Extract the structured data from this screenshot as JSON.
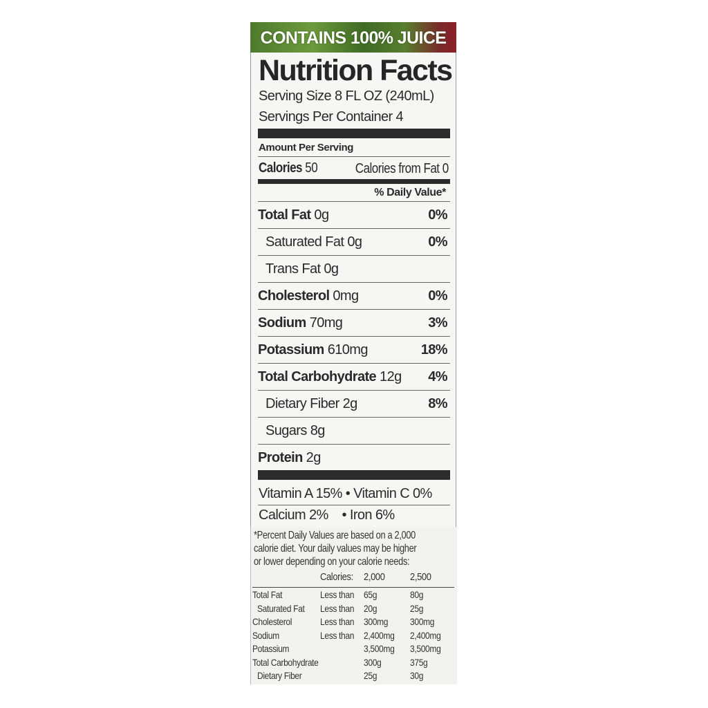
{
  "banner": "CONTAINS 100% JUICE",
  "title": "Nutrition Facts",
  "serving_size": "Serving Size 8 FL OZ (240mL)",
  "servings_per_container": "Servings Per Container 4",
  "amount_per_serving": "Amount Per Serving",
  "calories_label": "Calories",
  "calories_value": "50",
  "calories_from_fat": "Calories from Fat 0",
  "daily_value_header": "% Daily Value*",
  "nutrients": [
    {
      "name": "Total Fat",
      "amount": "0g",
      "dv": "0%",
      "bold": true,
      "indent": false
    },
    {
      "name": "Saturated Fat",
      "amount": "0g",
      "dv": "0%",
      "bold": false,
      "indent": true
    },
    {
      "name": "Trans Fat",
      "amount": "0g",
      "dv": "",
      "bold": false,
      "indent": true
    },
    {
      "name": "Cholesterol",
      "amount": "0mg",
      "dv": "0%",
      "bold": true,
      "indent": false
    },
    {
      "name": "Sodium",
      "amount": "70mg",
      "dv": "3%",
      "bold": true,
      "indent": false
    },
    {
      "name": "Potassium",
      "amount": "610mg",
      "dv": "18%",
      "bold": true,
      "indent": false
    },
    {
      "name": "Total Carbohydrate",
      "amount": "12g",
      "dv": "4%",
      "bold": true,
      "indent": false
    },
    {
      "name": "Dietary Fiber",
      "amount": "2g",
      "dv": "8%",
      "bold": false,
      "indent": true
    },
    {
      "name": "Sugars",
      "amount": "8g",
      "dv": "",
      "bold": false,
      "indent": true
    },
    {
      "name": "Protein",
      "amount": "2g",
      "dv": "",
      "bold": true,
      "indent": false
    }
  ],
  "vitamins_line1": "Vitamin A 15% • Vitamin C 0%",
  "vitamins_line2": "Calcium 2%    • Iron 6%",
  "footnote": [
    "*Percent Daily Values are based on a 2,000",
    "calorie diet. Your daily values may be higher",
    "or lower depending on your calorie needs:"
  ],
  "footer_table": {
    "header": [
      "",
      "Calories:",
      "2,000",
      "2,500"
    ],
    "rows": [
      [
        "Total Fat",
        "Less than",
        "65g",
        "80g"
      ],
      [
        " Saturated Fat",
        "Less than",
        "20g",
        "25g"
      ],
      [
        "Cholesterol",
        "Less than",
        "300mg",
        "300mg"
      ],
      [
        "Sodium",
        "Less than",
        "2,400mg",
        "2,400mg"
      ],
      [
        "Potassium",
        "",
        "3,500mg",
        "3,500mg"
      ],
      [
        "Total Carbohydrate",
        "",
        "300g",
        "375g"
      ],
      [
        " Dietary Fiber",
        "",
        "25g",
        "30g"
      ]
    ]
  }
}
